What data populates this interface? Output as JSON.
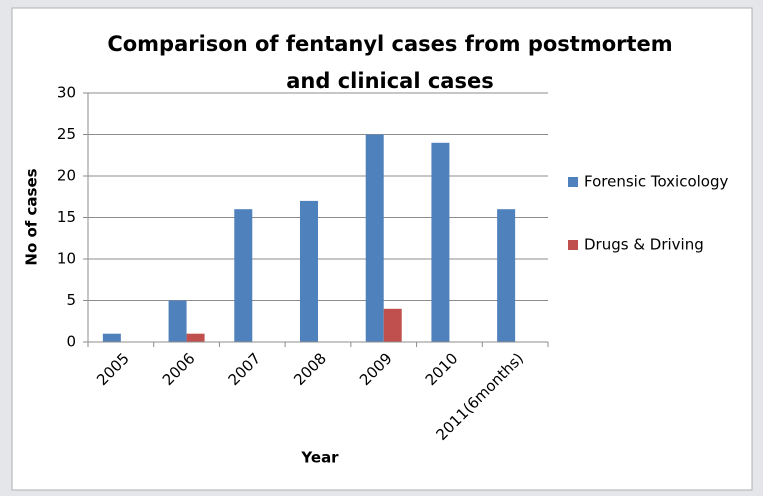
{
  "chart_data": {
    "type": "bar",
    "title": [
      "Comparison of fentanyl cases from postmortem",
      "and clinical cases"
    ],
    "x_label": "Year",
    "y_label": "No of cases",
    "categories": [
      "2005",
      "2006",
      "2007",
      "2008",
      "2009",
      "2010",
      "2011(6months)"
    ],
    "series": [
      {
        "name": "Forensic Toxicology",
        "color": "#4f81bd",
        "values": [
          1,
          5,
          16,
          17,
          25,
          24,
          16
        ]
      },
      {
        "name": "Drugs & Driving",
        "color": "#c0504d",
        "values": [
          0,
          1,
          0,
          0,
          4,
          0,
          0
        ]
      }
    ],
    "ylim": [
      0,
      30
    ],
    "yticks": [
      0,
      5,
      10,
      15,
      20,
      25,
      30
    ],
    "grid": true,
    "legend": "right"
  }
}
